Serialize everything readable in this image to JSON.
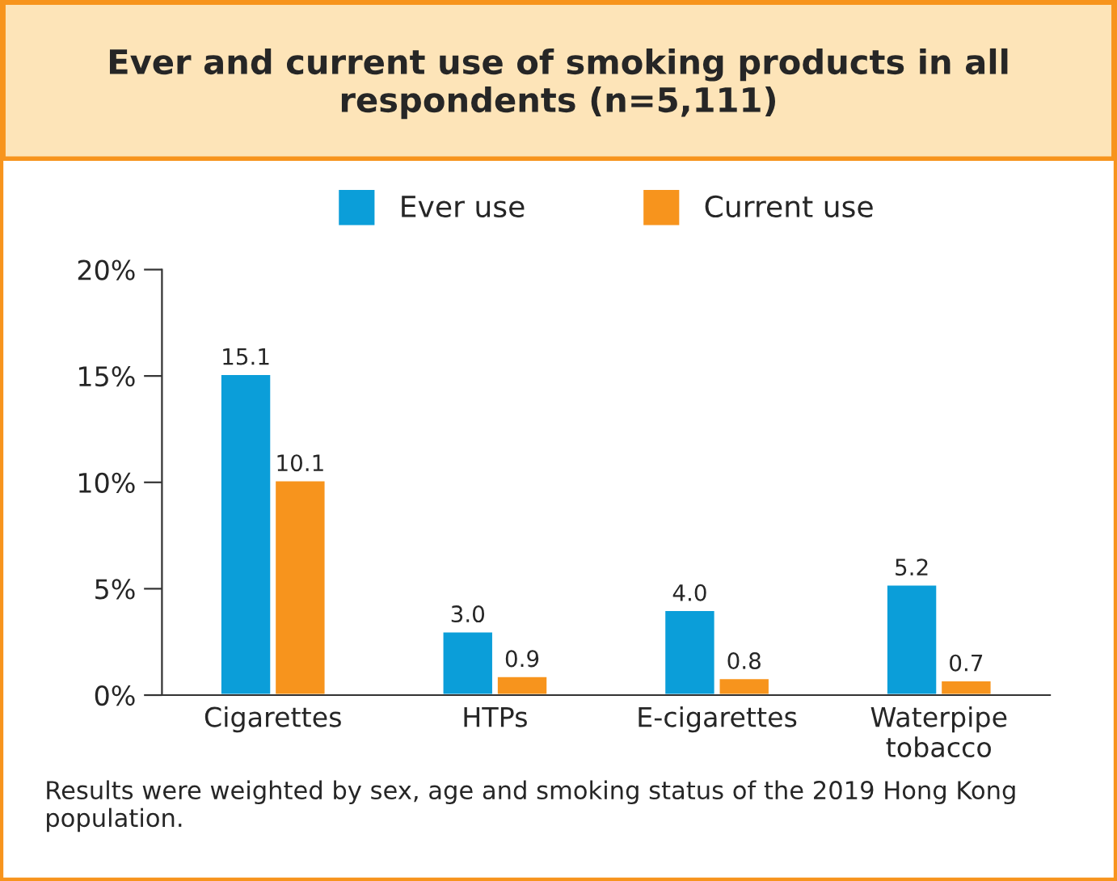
{
  "chart_data": {
    "type": "bar",
    "title": "Ever and current use of smoking products in all respondents (n=5,111)",
    "categories": [
      "Cigarettes",
      "HTPs",
      "E-cigarettes",
      "Waterpipe\ntobacco"
    ],
    "series": [
      {
        "name": "Ever use",
        "color": "#0b9ed9",
        "values": [
          15.1,
          3.0,
          4.0,
          5.2
        ]
      },
      {
        "name": "Current use",
        "color": "#f7941d",
        "values": [
          10.1,
          0.9,
          0.8,
          0.7
        ]
      }
    ],
    "value_labels": [
      [
        "15.1",
        "3.0",
        "4.0",
        "5.2"
      ],
      [
        "10.1",
        "0.9",
        "0.8",
        "0.7"
      ]
    ],
    "ylim": [
      0,
      20
    ],
    "yticks": [
      {
        "value": 0,
        "label": "0%"
      },
      {
        "value": 5,
        "label": "5%"
      },
      {
        "value": 10,
        "label": "10%"
      },
      {
        "value": 15,
        "label": "15%"
      },
      {
        "value": 20,
        "label": "20%"
      }
    ],
    "grid": false,
    "legend": "top",
    "annotations": [
      "Results were weighted by sex, age and smoking status of the 2019 Hong Kong population."
    ]
  }
}
